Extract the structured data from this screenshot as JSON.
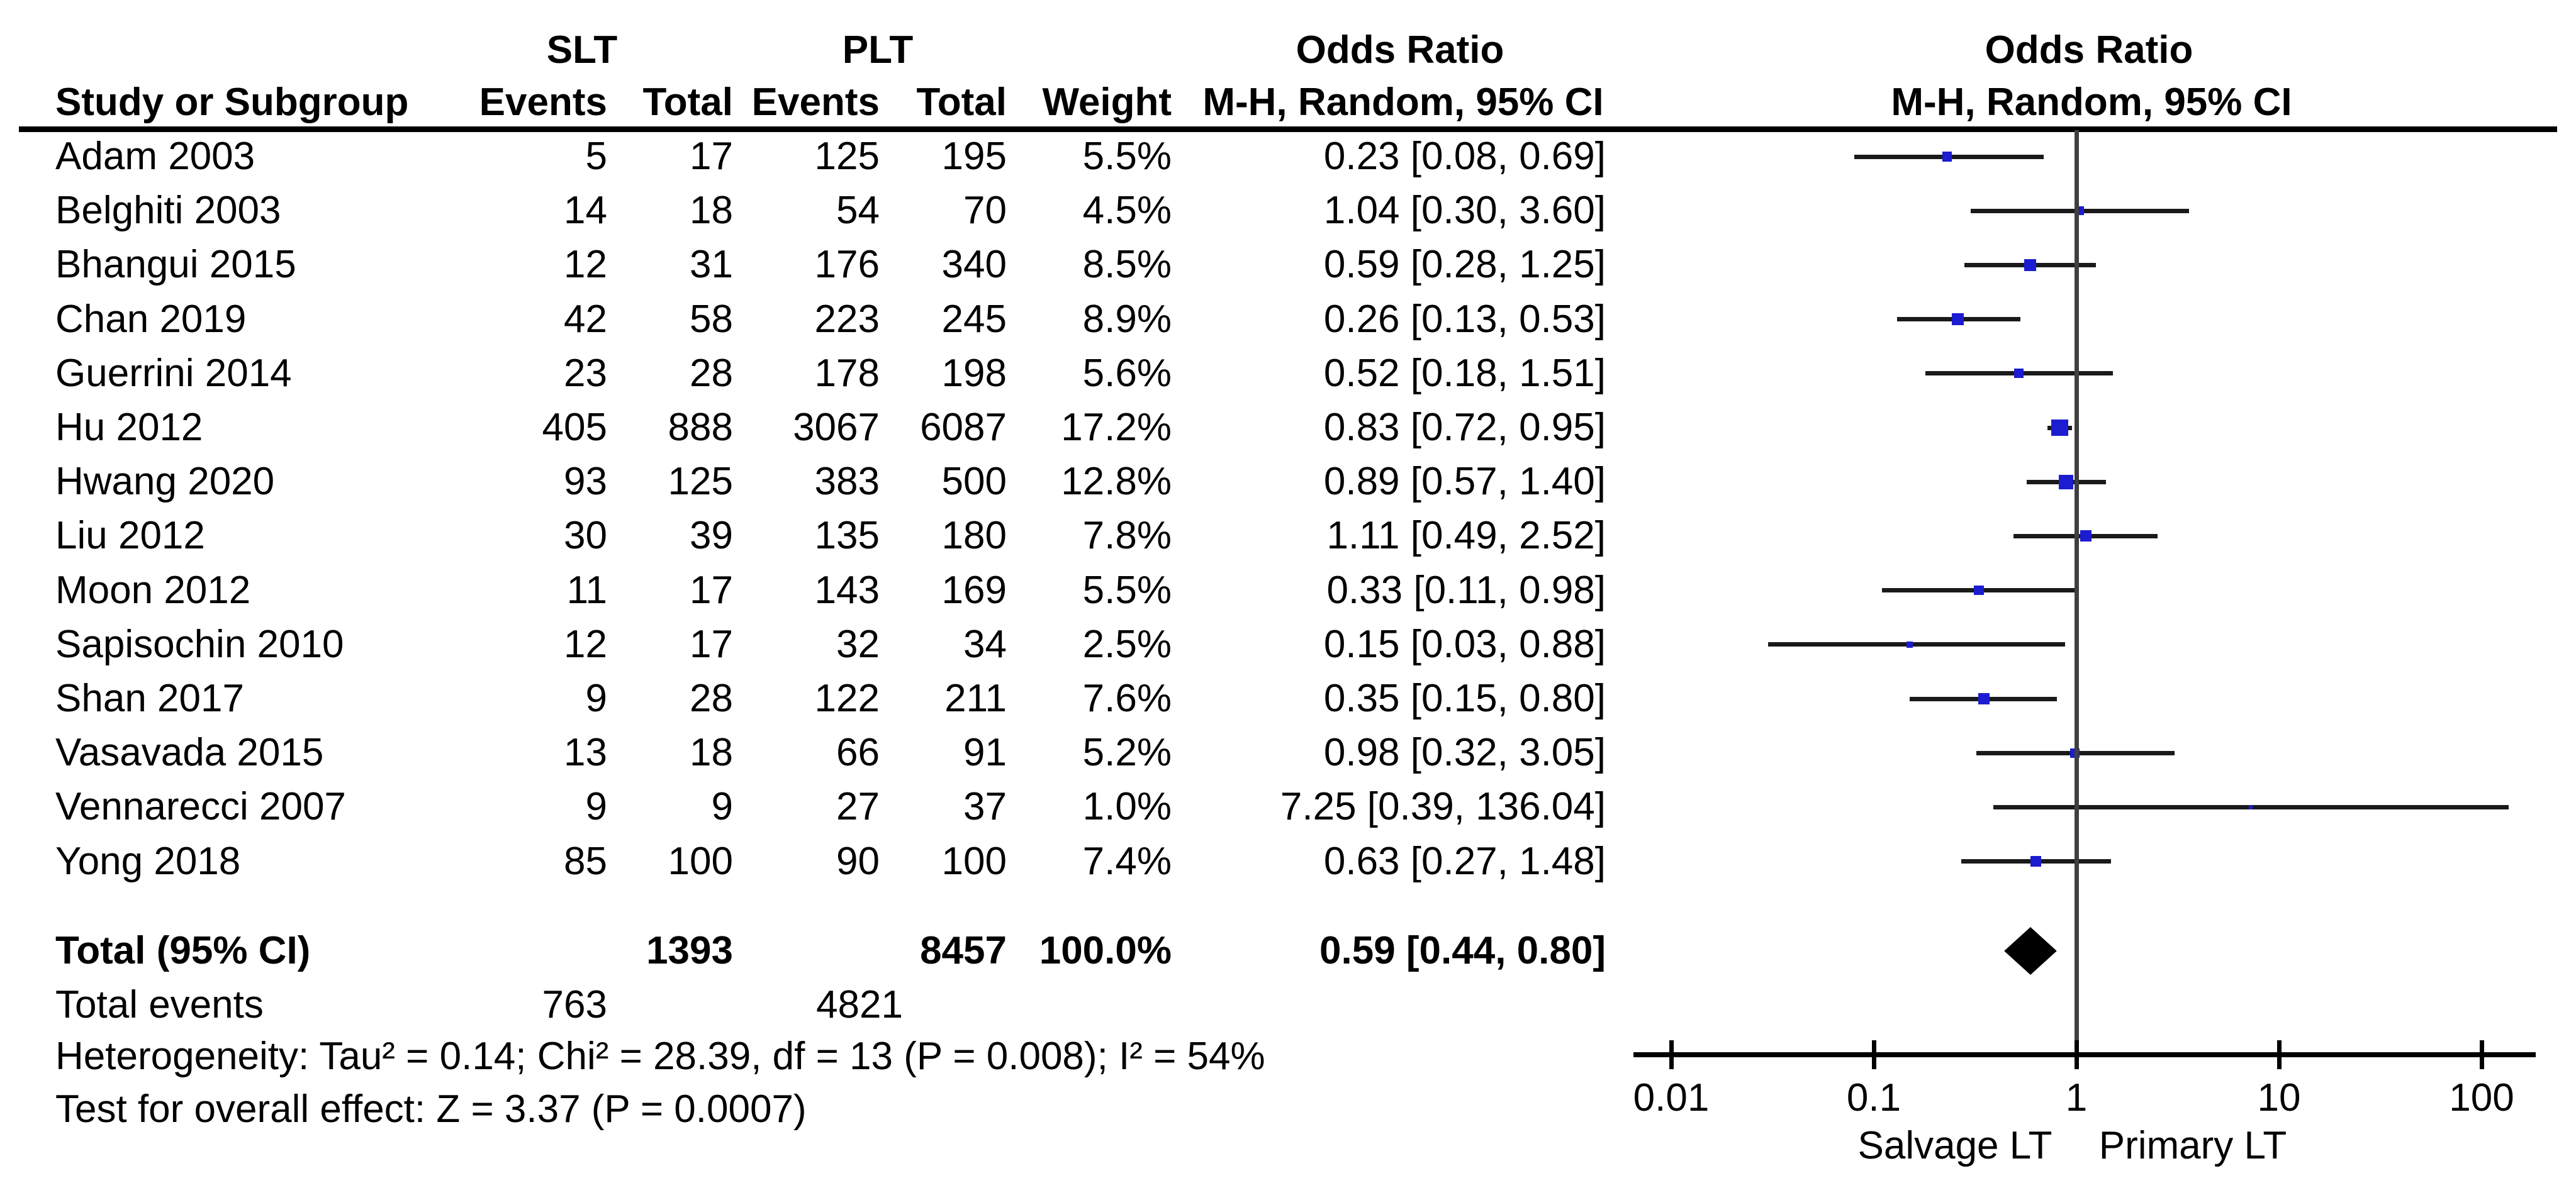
{
  "header": {
    "group_slt": "SLT",
    "group_plt": "PLT",
    "study_col": "Study or Subgroup",
    "slt_events_col": "Events",
    "slt_total_col": "Total",
    "plt_events_col": "Events",
    "plt_total_col": "Total",
    "weight_col": "Weight",
    "or_col_title": "Odds Ratio",
    "or_col_subtitle": "M-H, Random, 95% CI",
    "plot_title": "Odds Ratio",
    "plot_subtitle": "M-H, Random, 95% CI"
  },
  "chart_data": {
    "type": "forest",
    "effect_measure": "Odds Ratio",
    "method": "M-H, Random, 95% CI",
    "x_axis": {
      "scale": "log",
      "ticks": [
        0.01,
        0.1,
        1,
        10,
        100
      ],
      "tick_labels": [
        "0.01",
        "0.1",
        "1",
        "10",
        "100"
      ],
      "left_label": "Salvage LT",
      "right_label": "Primary LT"
    },
    "marker_color": "#1c1cd0",
    "diamond_color": "#000000",
    "studies": [
      {
        "name": "Adam 2003",
        "slt_events": "5",
        "slt_total": "17",
        "plt_events": "125",
        "plt_total": "195",
        "weight": "5.5%",
        "weight_pct": 5.5,
        "or": 0.23,
        "ci_low": 0.08,
        "ci_high": 0.69,
        "or_text": "0.23 [0.08, 0.69]"
      },
      {
        "name": "Belghiti 2003",
        "slt_events": "14",
        "slt_total": "18",
        "plt_events": "54",
        "plt_total": "70",
        "weight": "4.5%",
        "weight_pct": 4.5,
        "or": 1.04,
        "ci_low": 0.3,
        "ci_high": 3.6,
        "or_text": "1.04 [0.30, 3.60]"
      },
      {
        "name": "Bhangui 2015",
        "slt_events": "12",
        "slt_total": "31",
        "plt_events": "176",
        "plt_total": "340",
        "weight": "8.5%",
        "weight_pct": 8.5,
        "or": 0.59,
        "ci_low": 0.28,
        "ci_high": 1.25,
        "or_text": "0.59 [0.28, 1.25]"
      },
      {
        "name": "Chan 2019",
        "slt_events": "42",
        "slt_total": "58",
        "plt_events": "223",
        "plt_total": "245",
        "weight": "8.9%",
        "weight_pct": 8.9,
        "or": 0.26,
        "ci_low": 0.13,
        "ci_high": 0.53,
        "or_text": "0.26 [0.13, 0.53]"
      },
      {
        "name": "Guerrini 2014",
        "slt_events": "23",
        "slt_total": "28",
        "plt_events": "178",
        "plt_total": "198",
        "weight": "5.6%",
        "weight_pct": 5.6,
        "or": 0.52,
        "ci_low": 0.18,
        "ci_high": 1.51,
        "or_text": "0.52 [0.18, 1.51]"
      },
      {
        "name": "Hu 2012",
        "slt_events": "405",
        "slt_total": "888",
        "plt_events": "3067",
        "plt_total": "6087",
        "weight": "17.2%",
        "weight_pct": 17.2,
        "or": 0.83,
        "ci_low": 0.72,
        "ci_high": 0.95,
        "or_text": "0.83 [0.72, 0.95]"
      },
      {
        "name": "Hwang 2020",
        "slt_events": "93",
        "slt_total": "125",
        "plt_events": "383",
        "plt_total": "500",
        "weight": "12.8%",
        "weight_pct": 12.8,
        "or": 0.89,
        "ci_low": 0.57,
        "ci_high": 1.4,
        "or_text": "0.89 [0.57, 1.40]"
      },
      {
        "name": "Liu 2012",
        "slt_events": "30",
        "slt_total": "39",
        "plt_events": "135",
        "plt_total": "180",
        "weight": "7.8%",
        "weight_pct": 7.8,
        "or": 1.11,
        "ci_low": 0.49,
        "ci_high": 2.52,
        "or_text": "1.11 [0.49, 2.52]"
      },
      {
        "name": "Moon 2012",
        "slt_events": "11",
        "slt_total": "17",
        "plt_events": "143",
        "plt_total": "169",
        "weight": "5.5%",
        "weight_pct": 5.5,
        "or": 0.33,
        "ci_low": 0.11,
        "ci_high": 0.98,
        "or_text": "0.33 [0.11, 0.98]"
      },
      {
        "name": "Sapisochin 2010",
        "slt_events": "12",
        "slt_total": "17",
        "plt_events": "32",
        "plt_total": "34",
        "weight": "2.5%",
        "weight_pct": 2.5,
        "or": 0.15,
        "ci_low": 0.03,
        "ci_high": 0.88,
        "or_text": "0.15 [0.03, 0.88]"
      },
      {
        "name": "Shan 2017",
        "slt_events": "9",
        "slt_total": "28",
        "plt_events": "122",
        "plt_total": "211",
        "weight": "7.6%",
        "weight_pct": 7.6,
        "or": 0.35,
        "ci_low": 0.15,
        "ci_high": 0.8,
        "or_text": "0.35 [0.15, 0.80]"
      },
      {
        "name": "Vasavada 2015",
        "slt_events": "13",
        "slt_total": "18",
        "plt_events": "66",
        "plt_total": "91",
        "weight": "5.2%",
        "weight_pct": 5.2,
        "or": 0.98,
        "ci_low": 0.32,
        "ci_high": 3.05,
        "or_text": "0.98 [0.32, 3.05]"
      },
      {
        "name": "Vennarecci 2007",
        "slt_events": "9",
        "slt_total": "9",
        "plt_events": "27",
        "plt_total": "37",
        "weight": "1.0%",
        "weight_pct": 1.0,
        "or": 7.25,
        "ci_low": 0.39,
        "ci_high": 136.04,
        "or_text": "7.25 [0.39, 136.04]"
      },
      {
        "name": "Yong 2018",
        "slt_events": "85",
        "slt_total": "100",
        "plt_events": "90",
        "plt_total": "100",
        "weight": "7.4%",
        "weight_pct": 7.4,
        "or": 0.63,
        "ci_low": 0.27,
        "ci_high": 1.48,
        "or_text": "0.63 [0.27, 1.48]"
      }
    ],
    "total": {
      "label": "Total (95% CI)",
      "slt_total": "1393",
      "plt_total": "8457",
      "weight": "100.0%",
      "or": 0.59,
      "ci_low": 0.44,
      "ci_high": 0.8,
      "or_text": "0.59 [0.44, 0.80]"
    },
    "total_events": {
      "label": "Total events",
      "slt_events": "763",
      "plt_events": "4821"
    },
    "heterogeneity": "Heterogeneity: Tau² = 0.14; Chi² = 28.39, df = 13 (P = 0.008); I² = 54%",
    "overall_effect": "Test for overall effect: Z = 3.37 (P = 0.0007)"
  }
}
